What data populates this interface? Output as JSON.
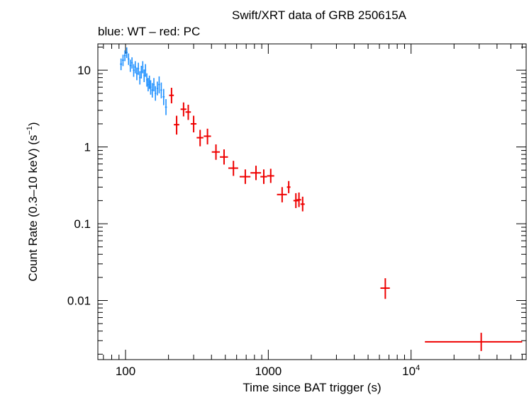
{
  "chart_data": {
    "type": "scatter",
    "title": "Swift/XRT data of GRB 250615A",
    "subtitle": "blue: WT – red: PC",
    "xlabel": "Time since BAT trigger (s)",
    "ylabel_main": "Count Rate (0.3–10 keV) (s",
    "ylabel_sup": "−1",
    "ylabel_close": ")",
    "xscale": "log",
    "yscale": "log",
    "xlim": [
      64,
      64000
    ],
    "ylim": [
      0.0017,
      22
    ],
    "x_ticks": [
      {
        "value": 100,
        "label": "100"
      },
      {
        "value": 1000,
        "label": "1000"
      },
      {
        "value": 10000,
        "label": "10",
        "sup": "4"
      }
    ],
    "y_ticks": [
      {
        "value": 10,
        "label": "10"
      },
      {
        "value": 1,
        "label": "1"
      },
      {
        "value": 0.1,
        "label": "0.1"
      },
      {
        "value": 0.01,
        "label": "0.01"
      }
    ],
    "colors": {
      "wt": "#1e90ff",
      "pc": "#ee0000",
      "frame": "#000000"
    },
    "series": [
      {
        "mode": "WT",
        "color": "#1e90ff",
        "points": [
          {
            "x": 93,
            "xerr": [
              1.5,
              1.5
            ],
            "y": 12.0,
            "yerr": [
              2.0,
              2.2
            ]
          },
          {
            "x": 96,
            "xerr": [
              1.5,
              1.5
            ],
            "y": 13.5,
            "yerr": [
              2.2,
              2.4
            ]
          },
          {
            "x": 99,
            "xerr": [
              1.5,
              1.5
            ],
            "y": 15.5,
            "yerr": [
              2.4,
              2.6
            ]
          },
          {
            "x": 102,
            "xerr": [
              1.5,
              1.5
            ],
            "y": 17.0,
            "yerr": [
              2.6,
              2.8
            ]
          },
          {
            "x": 105,
            "xerr": [
              1.5,
              1.5
            ],
            "y": 14.0,
            "yerr": [
              2.3,
              2.5
            ]
          },
          {
            "x": 108,
            "xerr": [
              1.5,
              1.5
            ],
            "y": 11.5,
            "yerr": [
              2.0,
              2.2
            ]
          },
          {
            "x": 111,
            "xerr": [
              1.5,
              1.5
            ],
            "y": 12.5,
            "yerr": [
              2.0,
              2.2
            ]
          },
          {
            "x": 114,
            "xerr": [
              1.5,
              1.5
            ],
            "y": 10.0,
            "yerr": [
              1.8,
              2.0
            ]
          },
          {
            "x": 117,
            "xerr": [
              1.5,
              1.5
            ],
            "y": 11.0,
            "yerr": [
              1.9,
              2.1
            ]
          },
          {
            "x": 120,
            "xerr": [
              1.5,
              1.5
            ],
            "y": 9.0,
            "yerr": [
              1.6,
              1.8
            ]
          },
          {
            "x": 123,
            "xerr": [
              1.5,
              1.5
            ],
            "y": 10.5,
            "yerr": [
              1.8,
              2.0
            ]
          },
          {
            "x": 126,
            "xerr": [
              1.5,
              1.5
            ],
            "y": 8.0,
            "yerr": [
              1.5,
              1.7
            ]
          },
          {
            "x": 129,
            "xerr": [
              1.5,
              1.5
            ],
            "y": 9.5,
            "yerr": [
              1.7,
              1.9
            ]
          },
          {
            "x": 132,
            "xerr": [
              1.5,
              1.5
            ],
            "y": 11.0,
            "yerr": [
              1.9,
              2.1
            ]
          },
          {
            "x": 135,
            "xerr": [
              1.5,
              1.5
            ],
            "y": 8.5,
            "yerr": [
              1.5,
              1.7
            ]
          },
          {
            "x": 138,
            "xerr": [
              1.5,
              1.5
            ],
            "y": 10.0,
            "yerr": [
              1.8,
              2.0
            ]
          },
          {
            "x": 141,
            "xerr": [
              1.5,
              1.5
            ],
            "y": 7.5,
            "yerr": [
              1.4,
              1.6
            ]
          },
          {
            "x": 144,
            "xerr": [
              1.5,
              1.5
            ],
            "y": 6.5,
            "yerr": [
              1.2,
              1.4
            ]
          },
          {
            "x": 147,
            "xerr": [
              1.5,
              1.5
            ],
            "y": 7.0,
            "yerr": [
              1.3,
              1.5
            ]
          },
          {
            "x": 150,
            "xerr": [
              1.5,
              1.5
            ],
            "y": 6.0,
            "yerr": [
              1.2,
              1.4
            ]
          },
          {
            "x": 154,
            "xerr": [
              2.0,
              2.0
            ],
            "y": 5.5,
            "yerr": [
              1.1,
              1.3
            ]
          },
          {
            "x": 158,
            "xerr": [
              2.0,
              2.0
            ],
            "y": 6.5,
            "yerr": [
              1.2,
              1.4
            ]
          },
          {
            "x": 162,
            "xerr": [
              2.0,
              2.0
            ],
            "y": 5.0,
            "yerr": [
              1.0,
              1.2
            ]
          },
          {
            "x": 167,
            "xerr": [
              2.0,
              2.0
            ],
            "y": 5.8,
            "yerr": [
              1.1,
              1.3
            ]
          },
          {
            "x": 172,
            "xerr": [
              2.5,
              2.5
            ],
            "y": 6.5,
            "yerr": [
              1.5,
              1.8
            ]
          },
          {
            "x": 178,
            "xerr": [
              2.5,
              2.5
            ],
            "y": 5.5,
            "yerr": [
              1.2,
              1.4
            ]
          },
          {
            "x": 185,
            "xerr": [
              3.0,
              3.0
            ],
            "y": 4.5,
            "yerr": [
              1.0,
              1.2
            ]
          },
          {
            "x": 192,
            "xerr": [
              3.0,
              3.0
            ],
            "y": 3.3,
            "yerr": [
              0.7,
              0.9
            ]
          }
        ]
      },
      {
        "mode": "PC",
        "color": "#ee0000",
        "points": [
          {
            "x": 210,
            "xerr": [
              8,
              8
            ],
            "y": 4.7,
            "yerr": [
              1.0,
              1.2
            ]
          },
          {
            "x": 228,
            "xerr": [
              10,
              10
            ],
            "y": 1.95,
            "yerr": [
              0.5,
              0.6
            ]
          },
          {
            "x": 255,
            "xerr": [
              12,
              12
            ],
            "y": 3.1,
            "yerr": [
              0.6,
              0.7
            ]
          },
          {
            "x": 275,
            "xerr": [
              12,
              12
            ],
            "y": 2.85,
            "yerr": [
              0.6,
              0.7
            ]
          },
          {
            "x": 300,
            "xerr": [
              14,
              14
            ],
            "y": 2.0,
            "yerr": [
              0.45,
              0.55
            ]
          },
          {
            "x": 333,
            "xerr": [
              18,
              18
            ],
            "y": 1.32,
            "yerr": [
              0.3,
              0.35
            ]
          },
          {
            "x": 375,
            "xerr": [
              22,
              22
            ],
            "y": 1.38,
            "yerr": [
              0.3,
              0.35
            ]
          },
          {
            "x": 430,
            "xerr": [
              28,
              28
            ],
            "y": 0.86,
            "yerr": [
              0.18,
              0.22
            ]
          },
          {
            "x": 490,
            "xerr": [
              32,
              32
            ],
            "y": 0.74,
            "yerr": [
              0.15,
              0.19
            ]
          },
          {
            "x": 570,
            "xerr": [
              45,
              45
            ],
            "y": 0.53,
            "yerr": [
              0.11,
              0.13
            ]
          },
          {
            "x": 690,
            "xerr": [
              60,
              60
            ],
            "y": 0.41,
            "yerr": [
              0.08,
              0.1
            ]
          },
          {
            "x": 820,
            "xerr": [
              70,
              70
            ],
            "y": 0.46,
            "yerr": [
              0.09,
              0.11
            ]
          },
          {
            "x": 930,
            "xerr": [
              50,
              50
            ],
            "y": 0.41,
            "yerr": [
              0.08,
              0.1
            ]
          },
          {
            "x": 1040,
            "xerr": [
              60,
              60
            ],
            "y": 0.42,
            "yerr": [
              0.08,
              0.1
            ]
          },
          {
            "x": 1250,
            "xerr": [
              100,
              100
            ],
            "y": 0.24,
            "yerr": [
              0.05,
              0.06
            ]
          },
          {
            "x": 1390,
            "xerr": [
              40,
              40
            ],
            "y": 0.3,
            "yerr": [
              0.05,
              0.06
            ]
          },
          {
            "x": 1560,
            "xerr": [
              60,
              60
            ],
            "y": 0.2,
            "yerr": [
              0.04,
              0.05
            ]
          },
          {
            "x": 1640,
            "xerr": [
              60,
              60
            ],
            "y": 0.205,
            "yerr": [
              0.04,
              0.05
            ]
          },
          {
            "x": 1740,
            "xerr": [
              60,
              60
            ],
            "y": 0.18,
            "yerr": [
              0.035,
              0.045
            ]
          },
          {
            "x": 6600,
            "xerr": [
              500,
              500
            ],
            "y": 0.0145,
            "yerr": [
              0.004,
              0.005
            ]
          },
          {
            "x": 31000,
            "xerr": [
              18500,
              29000
            ],
            "y": 0.0029,
            "yerr": [
              0.0007,
              0.0009
            ]
          }
        ]
      }
    ]
  }
}
